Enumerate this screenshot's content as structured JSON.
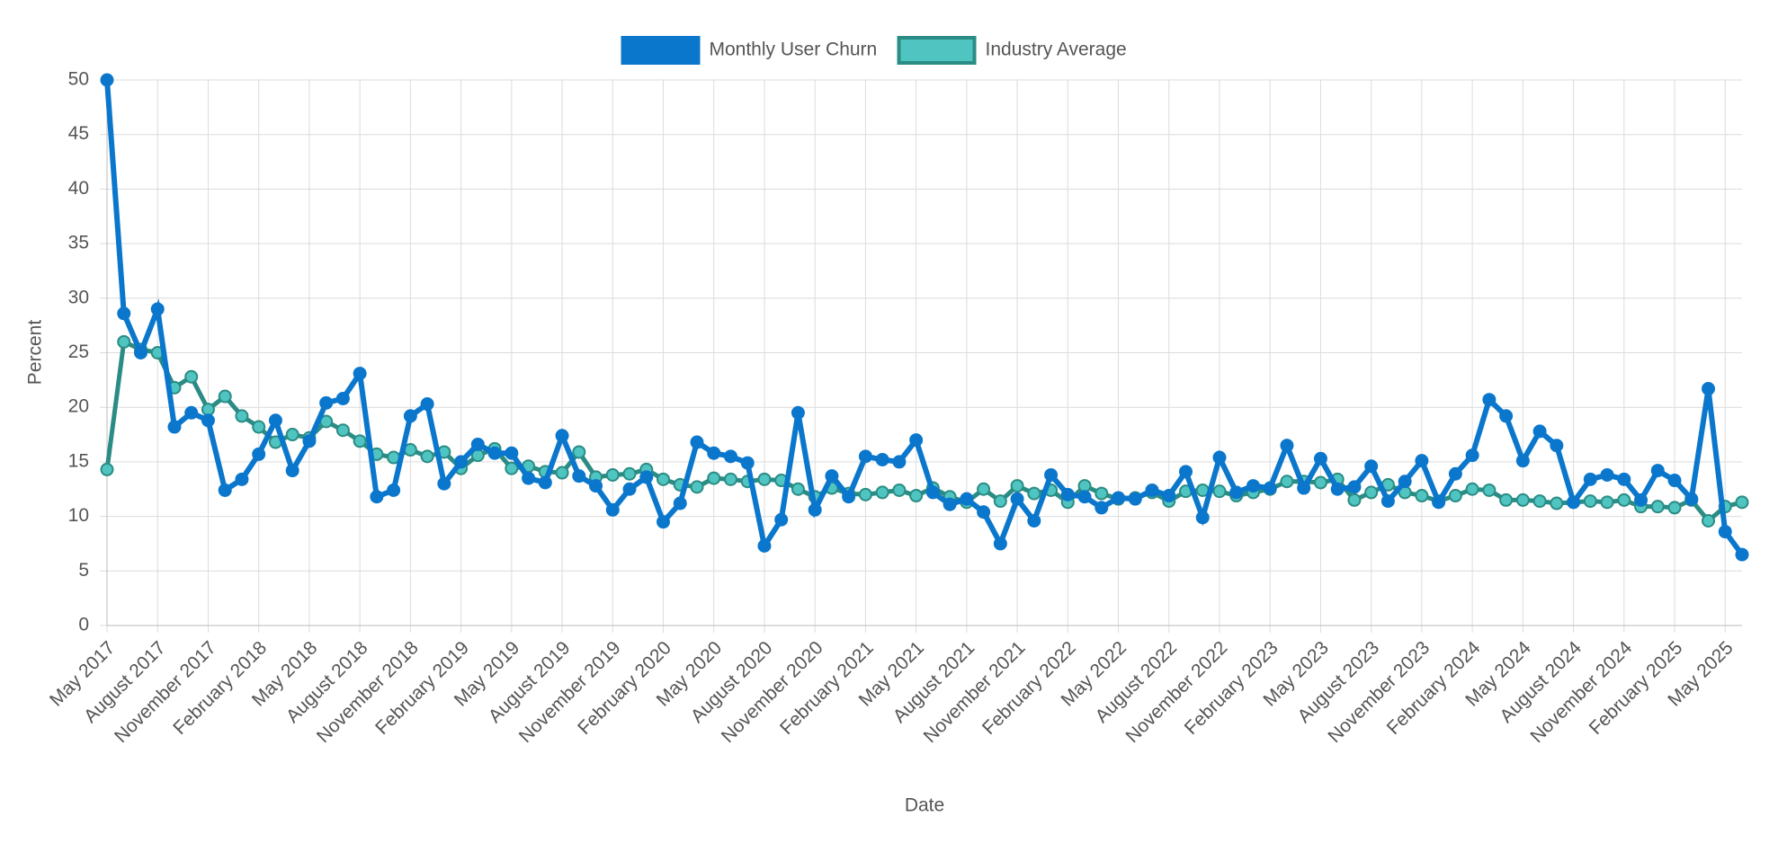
{
  "chart_data": {
    "type": "line",
    "legend": "top",
    "grid": true,
    "xlabel": "Date",
    "ylabel": "Percent",
    "ylim": [
      0,
      50
    ],
    "yticks": [
      0,
      5,
      10,
      15,
      20,
      25,
      30,
      35,
      40,
      45,
      50
    ],
    "categories": [
      "May 2017",
      null,
      null,
      "August 2017",
      null,
      null,
      "November 2017",
      null,
      null,
      "February 2018",
      null,
      null,
      "May 2018",
      null,
      null,
      "August 2018",
      null,
      null,
      "November 2018",
      null,
      null,
      "February 2019",
      null,
      null,
      "May 2019",
      null,
      null,
      "August 2019",
      null,
      null,
      "November 2019",
      null,
      null,
      "February 2020",
      null,
      null,
      "May 2020",
      null,
      null,
      "August 2020",
      null,
      null,
      "November 2020",
      null,
      null,
      "February 2021",
      null,
      null,
      "May 2021",
      null,
      null,
      "August 2021",
      null,
      null,
      "November 2021",
      null,
      null,
      "February 2022",
      null,
      null,
      "May 2022",
      null,
      null,
      "August 2022",
      null,
      null,
      "November 2022",
      null,
      null,
      "February 2023",
      null,
      null,
      "May 2023",
      null,
      null,
      "August 2023",
      null,
      null,
      "November 2023",
      null,
      null,
      "February 2024",
      null,
      null,
      "May 2024",
      null,
      null,
      "August 2024",
      null,
      null,
      "November 2024",
      null,
      null,
      "February 2025",
      null,
      null,
      "May 2025",
      null
    ],
    "series": [
      {
        "name": "Monthly User Churn",
        "color": "#0a77cc",
        "fill": "#0a77cc",
        "values": [
          50,
          28.6,
          25,
          29,
          18.2,
          19.5,
          18.8,
          12.4,
          13.4,
          15.7,
          18.8,
          14.2,
          16.9,
          20.4,
          20.8,
          23.1,
          11.8,
          12.4,
          19.2,
          20.3,
          13,
          15,
          16.6,
          15.8,
          15.8,
          13.5,
          13.1,
          17.4,
          13.7,
          12.8,
          10.6,
          12.5,
          13.6,
          9.5,
          11.2,
          16.8,
          15.8,
          15.5,
          14.9,
          7.3,
          9.7,
          19.5,
          10.6,
          13.7,
          11.8,
          15.5,
          15.2,
          15,
          17,
          12.2,
          11.1,
          11.6,
          10.4,
          7.5,
          11.6,
          9.6,
          13.8,
          12,
          11.8,
          10.8,
          11.7,
          11.6,
          12.4,
          11.9,
          14.1,
          9.9,
          15.4,
          12.2,
          12.8,
          12.6,
          16.5,
          12.6,
          15.3,
          12.5,
          12.7,
          14.6,
          11.4,
          13.2,
          15.1,
          11.3,
          13.9,
          15.6,
          20.7,
          19.2,
          15.1,
          17.8,
          16.5,
          11.3,
          13.4,
          13.8,
          13.4,
          11.5,
          14.2,
          13.3,
          11.6,
          21.7,
          8.6,
          6.5
        ]
      },
      {
        "name": "Industry Average",
        "color": "#2a8c84",
        "fill": "#4fc4c0",
        "values": [
          14.3,
          26,
          25.3,
          25,
          21.8,
          22.8,
          19.8,
          21,
          19.2,
          18.2,
          16.8,
          17.5,
          17.2,
          18.7,
          17.9,
          16.9,
          15.7,
          15.4,
          16.1,
          15.5,
          15.9,
          14.4,
          15.6,
          16.2,
          14.4,
          14.6,
          14.1,
          14,
          15.9,
          13.6,
          13.8,
          13.9,
          14.3,
          13.4,
          12.9,
          12.7,
          13.5,
          13.4,
          13.2,
          13.4,
          13.3,
          12.5,
          11.8,
          12.6,
          12.1,
          12,
          12.2,
          12.4,
          11.9,
          12.6,
          11.8,
          11.3,
          12.5,
          11.4,
          12.8,
          12.1,
          12.4,
          11.3,
          12.8,
          12.1,
          11.6,
          11.7,
          12.2,
          11.4,
          12.3,
          12.4,
          12.3,
          11.9,
          12.2,
          12.5,
          13.2,
          13.2,
          13.1,
          13.4,
          11.5,
          12.2,
          12.9,
          12.2,
          11.9,
          11.4,
          11.9,
          12.5,
          12.4,
          11.5,
          11.5,
          11.4,
          11.2,
          11.3,
          11.4,
          11.3,
          11.5,
          10.9,
          10.9,
          10.8,
          11.5,
          9.6,
          10.9,
          11.3
        ]
      }
    ]
  }
}
